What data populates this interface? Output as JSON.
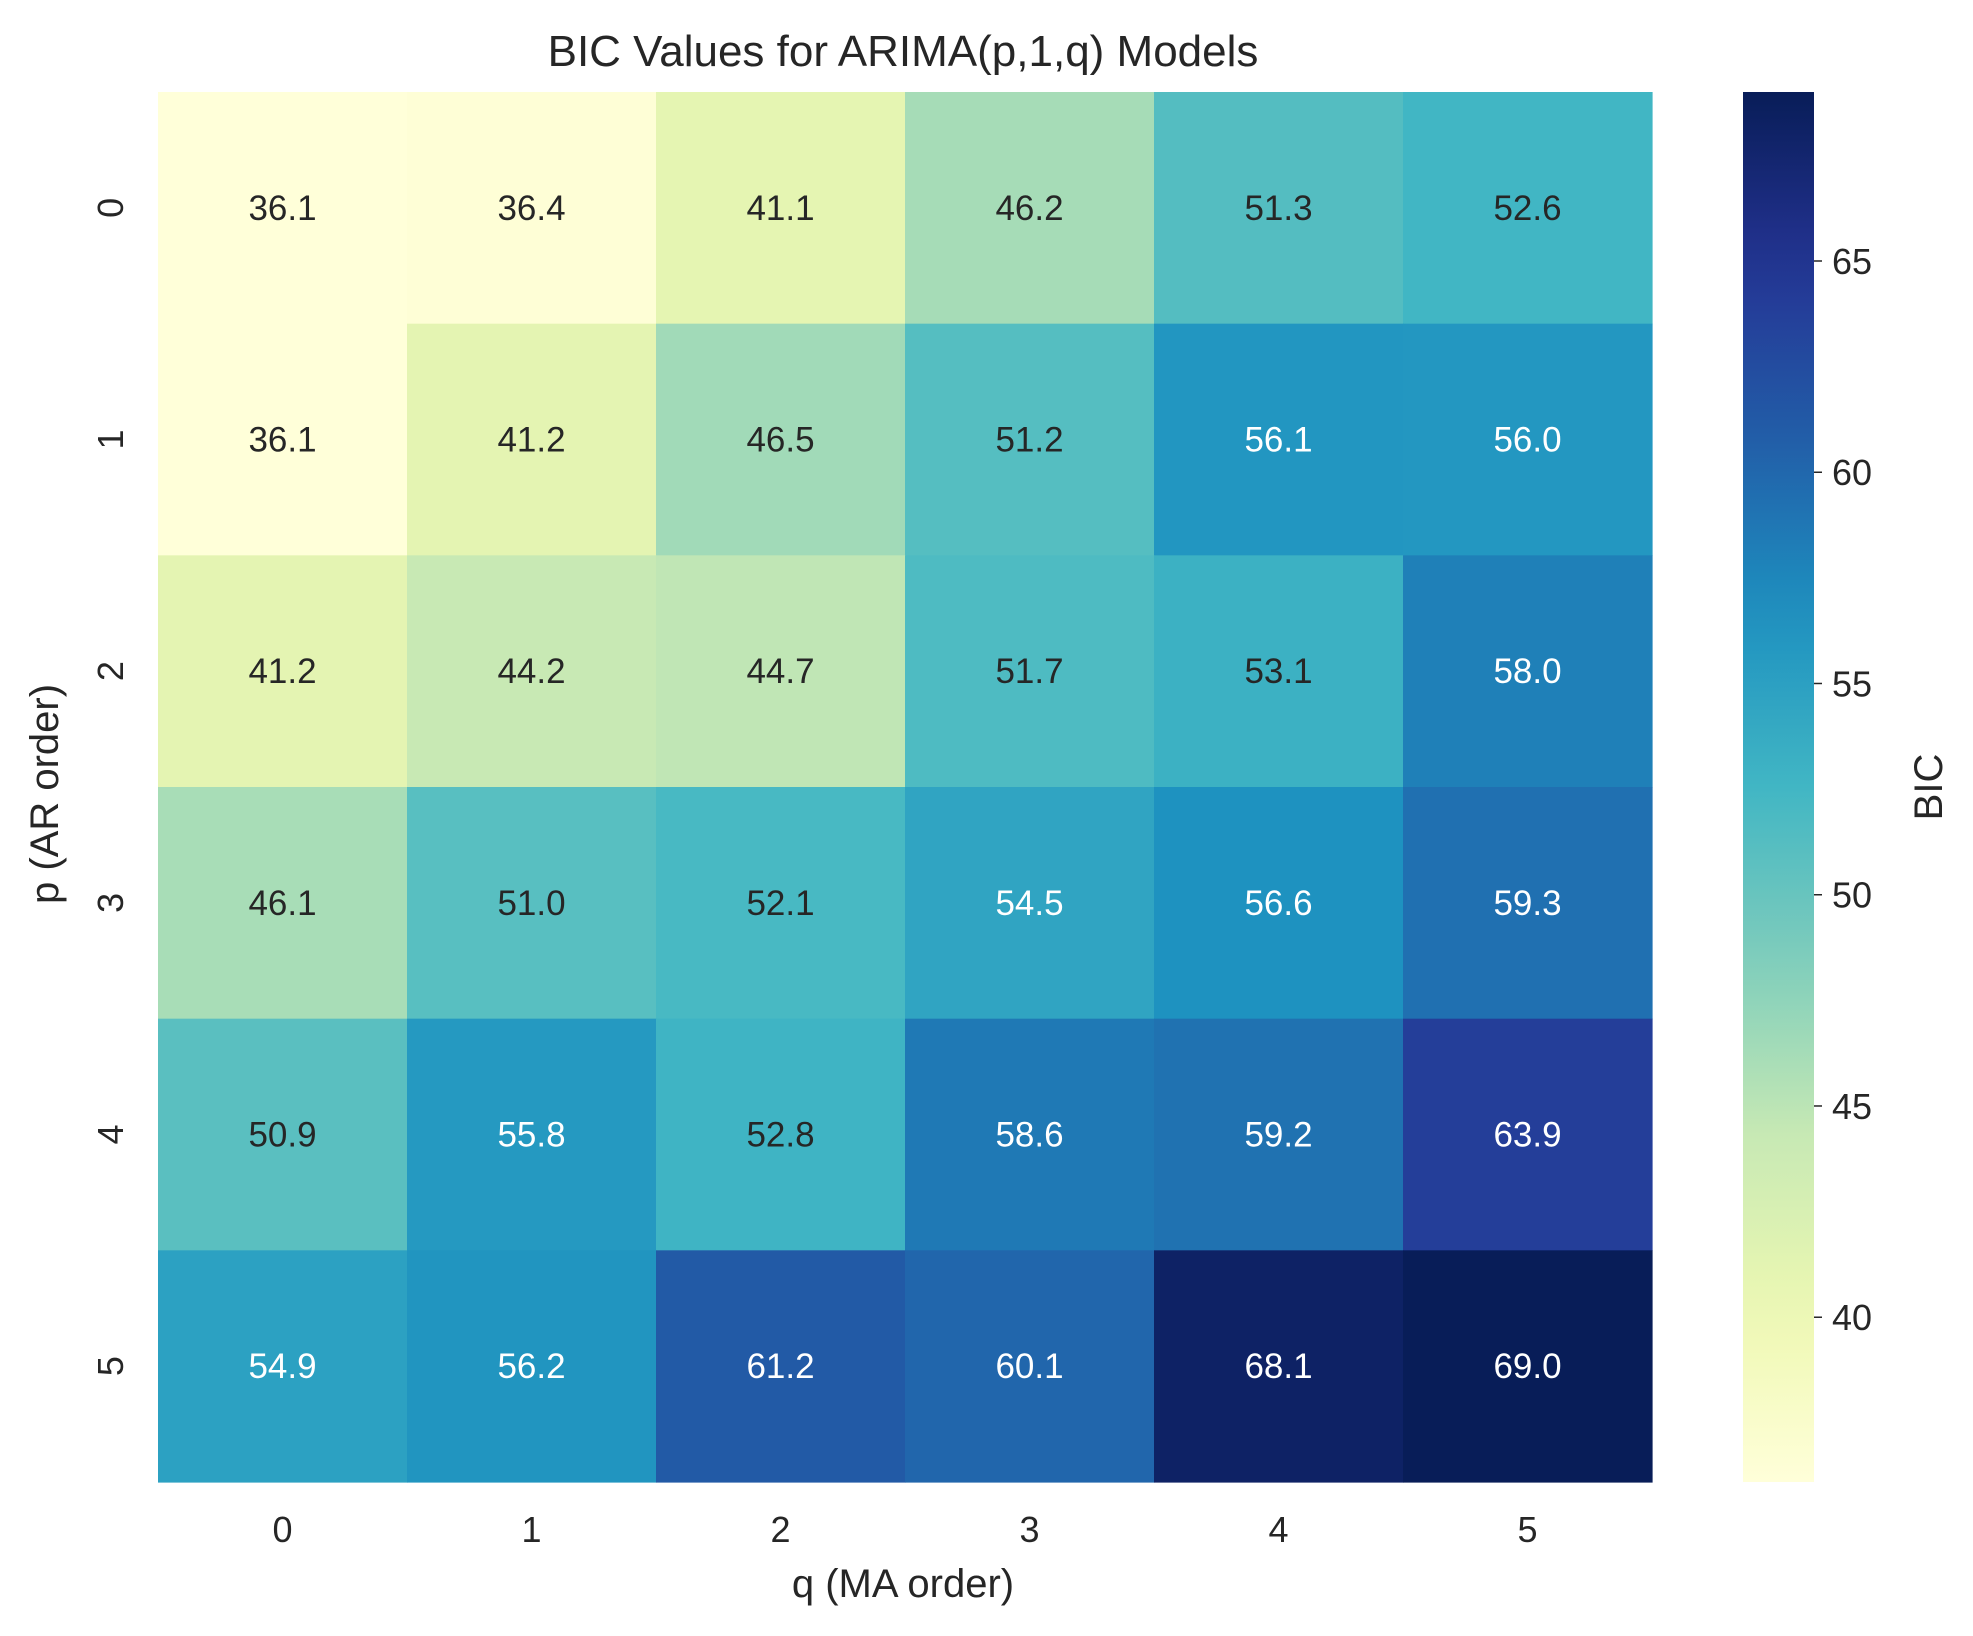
{
  "chart_data": {
    "type": "heatmap",
    "title": "BIC Values for ARIMA(p,1,q) Models",
    "xlabel": "q (MA order)",
    "ylabel": "p (AR order)",
    "x_categories": [
      "0",
      "1",
      "2",
      "3",
      "4",
      "5"
    ],
    "y_categories": [
      "0",
      "1",
      "2",
      "3",
      "4",
      "5"
    ],
    "values": [
      [
        36.1,
        36.4,
        41.1,
        46.2,
        51.3,
        52.6
      ],
      [
        36.1,
        41.2,
        46.5,
        51.2,
        56.1,
        56.0
      ],
      [
        41.2,
        44.2,
        44.7,
        51.7,
        53.1,
        58.0
      ],
      [
        46.1,
        51.0,
        52.1,
        54.5,
        56.6,
        59.3
      ],
      [
        50.9,
        55.8,
        52.8,
        58.6,
        59.2,
        63.9
      ],
      [
        54.9,
        56.2,
        61.2,
        60.1,
        68.1,
        69.0
      ]
    ],
    "value_format": "0.0",
    "colormap": "YlGnBu",
    "colorbar": {
      "label": "BIC",
      "range": [
        36.1,
        69.0
      ],
      "ticks": [
        40,
        45,
        50,
        55,
        60,
        65
      ],
      "tick_labels": [
        "40",
        "45",
        "50",
        "55",
        "60",
        "65"
      ]
    },
    "grid": false,
    "legend": "colorbar-right"
  }
}
